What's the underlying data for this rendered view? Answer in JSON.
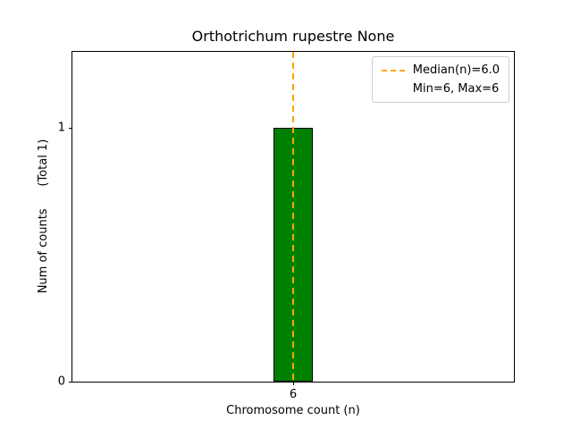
{
  "chart_data": {
    "type": "bar",
    "title": "Orthotrichum rupestre None",
    "xlabel": "Chromosome count (n)",
    "ylabel": "Num of counts      (Total 1)",
    "total_annotation": "(Total 1)",
    "xlim": [
      5.45,
      6.55
    ],
    "ylim": [
      0,
      1.3
    ],
    "grid": false,
    "categories": [
      6
    ],
    "values": [
      1
    ],
    "bars": [
      {
        "x": 6,
        "height": 1,
        "width": 0.1
      }
    ],
    "x_ticks": [
      {
        "value": 6,
        "label": "6"
      }
    ],
    "y_ticks": [
      {
        "value": 0,
        "label": "0"
      },
      {
        "value": 1,
        "label": "1"
      }
    ],
    "bar_color": "#008000",
    "bar_edge_color": "#000000",
    "median_line": {
      "value": 6.0,
      "color": "#FFA500",
      "style": "dashed"
    },
    "stats": {
      "median": 6.0,
      "min": 6,
      "max": 6,
      "total_counts": 1
    },
    "legend": {
      "position": "upper right",
      "entries": [
        {
          "sample": "dashed-orange-line",
          "label": "Median(n)=6.0"
        },
        {
          "sample": "none",
          "label": "Min=6, Max=6"
        }
      ]
    }
  }
}
